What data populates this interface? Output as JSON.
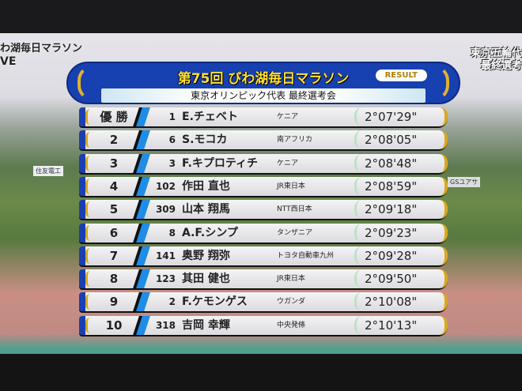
{
  "corner_left": {
    "line1": "わ湖毎日マラソン",
    "line2": "VE"
  },
  "corner_right": {
    "line1": "東京五輪代",
    "line2": "最終選考"
  },
  "background_signs": [
    "住友電工",
    "GSユアサ"
  ],
  "banner": {
    "title": "第75回 びわ湖毎日マラソン",
    "badge": "RESULT",
    "subtitle": "東京オリンピック代表 最終選考会",
    "colors": {
      "blue": "#1740b0",
      "gold": "#e0b030",
      "title_text": "#ffe030"
    }
  },
  "results": [
    {
      "rank": "優 勝",
      "bib": "1",
      "name": "E.チェベト",
      "team": "ケニア",
      "time": "2°07'29\""
    },
    {
      "rank": "2",
      "bib": "6",
      "name": "S.モコカ",
      "team": "南アフリカ",
      "time": "2°08'05\""
    },
    {
      "rank": "3",
      "bib": "3",
      "name": "F.キプロティチ",
      "team": "ケニア",
      "time": "2°08'48\""
    },
    {
      "rank": "4",
      "bib": "102",
      "name": "作田 直也",
      "team": "JR東日本",
      "time": "2°08'59\""
    },
    {
      "rank": "5",
      "bib": "309",
      "name": "山本 翔馬",
      "team": "NTT西日本",
      "time": "2°09'18\""
    },
    {
      "rank": "6",
      "bib": "8",
      "name": "A.F.シンプ",
      "team": "タンザニア",
      "time": "2°09'23\""
    },
    {
      "rank": "7",
      "bib": "141",
      "name": "奥野 翔弥",
      "team": "トヨタ自動車九州",
      "time": "2°09'28\""
    },
    {
      "rank": "8",
      "bib": "123",
      "name": "其田 健也",
      "team": "JR東日本",
      "time": "2°09'50\""
    },
    {
      "rank": "9",
      "bib": "2",
      "name": "F.ケモンゲス",
      "team": "ウガンダ",
      "time": "2°10'08\""
    },
    {
      "rank": "10",
      "bib": "318",
      "name": "吉岡 幸輝",
      "team": "中央発條",
      "time": "2°10'13\""
    }
  ]
}
